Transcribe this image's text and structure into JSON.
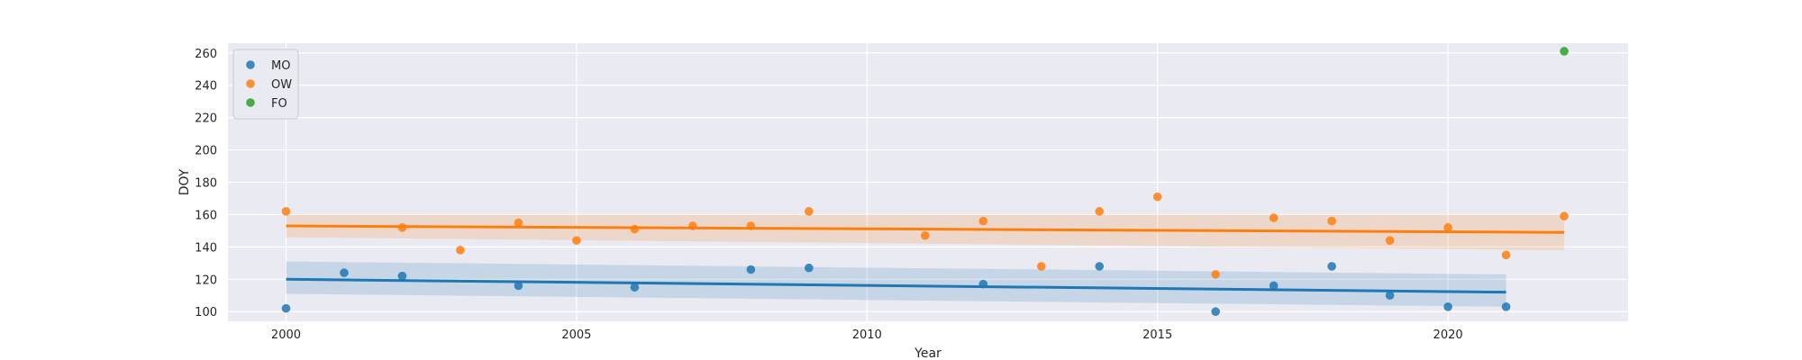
{
  "chart_data": {
    "type": "scatter",
    "xlabel": "Year",
    "ylabel": "DOY",
    "xlim": [
      1999,
      2023.1
    ],
    "ylim": [
      94,
      266
    ],
    "x_ticks": [
      2000,
      2005,
      2010,
      2015,
      2020
    ],
    "y_ticks": [
      100,
      120,
      140,
      160,
      180,
      200,
      220,
      240,
      260
    ],
    "grid": true,
    "legend_position": "top-left",
    "background_color": "#eaeaf2",
    "series": [
      {
        "name": "MO",
        "color": "#1f77b4",
        "x": [
          2000,
          2001,
          2002,
          2004,
          2006,
          2008,
          2009,
          2012,
          2014,
          2016,
          2017,
          2018,
          2019,
          2020,
          2021
        ],
        "y": [
          102,
          124,
          122,
          116,
          115,
          126,
          127,
          117,
          128,
          100,
          116,
          128,
          110,
          103,
          103
        ],
        "trend": {
          "x": [
            2000,
            2021
          ],
          "y": [
            120,
            112
          ]
        },
        "band_upper": [
          131,
          123
        ],
        "band_lower": [
          111,
          103
        ]
      },
      {
        "name": "OW",
        "color": "#ff7f0e",
        "x": [
          2000,
          2002,
          2003,
          2004,
          2005,
          2006,
          2007,
          2008,
          2009,
          2011,
          2012,
          2013,
          2014,
          2015,
          2016,
          2017,
          2018,
          2019,
          2020,
          2021,
          2022
        ],
        "y": [
          162,
          152,
          138,
          155,
          144,
          151,
          153,
          153,
          162,
          147,
          156,
          128,
          162,
          171,
          123,
          158,
          156,
          144,
          152,
          135,
          159
        ],
        "trend": {
          "x": [
            2000,
            2022
          ],
          "y": [
            153,
            149
          ]
        },
        "band_upper": [
          160,
          160
        ],
        "band_lower": [
          146,
          138
        ]
      },
      {
        "name": "FO",
        "color": "#2ca02c",
        "x": [
          2022
        ],
        "y": [
          261
        ]
      }
    ]
  }
}
